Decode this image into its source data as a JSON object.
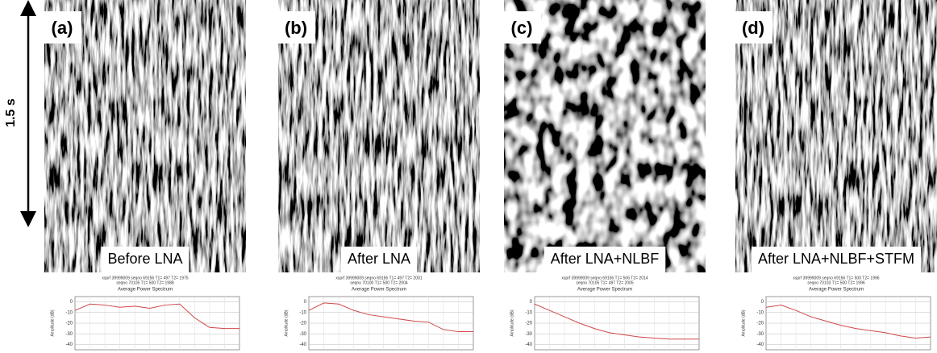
{
  "axis_label": "1.5 s",
  "panels": [
    {
      "label": "(a)",
      "caption": "Before LNA",
      "spectrum": {
        "type": "line",
        "header": [
          "xsprf 39999009 seqno 69156 T1= 497 T2= 1975",
          "seqno 70105 T1= 500 T2= 1988"
        ],
        "title": "Average Power Spectrum",
        "y_label": "Amplitude (dB)",
        "values": [
          -8,
          -2,
          -3,
          -5,
          -4,
          -6,
          -3,
          -2,
          -15,
          -24,
          -25,
          -25
        ],
        "color": "#d04848",
        "ylim": [
          -45,
          5
        ],
        "yticks": [
          0,
          -10,
          -20,
          -30,
          -40
        ],
        "grid": true
      }
    },
    {
      "label": "(b)",
      "caption": "After LNA",
      "spectrum": {
        "type": "line",
        "header": [
          "xsprf 39999009 seqno 69156 T1= 497 T2= 2001",
          "seqno 70100 T1= 500 T2= 2004"
        ],
        "title": "Average Power Spectrum",
        "y_label": "Amplitude (dB)",
        "values": [
          -8,
          -1,
          -2,
          -8,
          -12,
          -14,
          -16,
          -18,
          -19,
          -26,
          -28,
          -28
        ],
        "color": "#d04848",
        "ylim": [
          -45,
          5
        ],
        "yticks": [
          0,
          -10,
          -20,
          -30,
          -40
        ],
        "grid": true
      }
    },
    {
      "label": "(c)",
      "caption": "After LNA+NLBF",
      "spectrum": {
        "type": "line",
        "header": [
          "xsprf 39999009 seqno 69156 T1= 506 T2= 2014",
          "seqno 70105 T1= 497 T2= 2005"
        ],
        "title": "Average Power Spectrum",
        "y_label": "Amplitude (dB)",
        "values": [
          -2,
          -8,
          -14,
          -20,
          -25,
          -29,
          -31,
          -33,
          -34,
          -35,
          -35,
          -35
        ],
        "color": "#d04848",
        "ylim": [
          -45,
          5
        ],
        "yticks": [
          0,
          -10,
          -20,
          -30,
          -40
        ],
        "grid": true
      }
    },
    {
      "label": "(d)",
      "caption": "After LNA+NLBF+STFM",
      "spectrum": {
        "type": "line",
        "header": [
          "xsprf 39999009 seqno 69156 T1= 500 T2= 1996",
          "seqno 70103 T1= 500 T2= 1996"
        ],
        "title": "Average Power Spectrum",
        "y_label": "Amplitude (dB)",
        "values": [
          -5,
          -3,
          -8,
          -14,
          -18,
          -22,
          -25,
          -27,
          -29,
          -32,
          -34,
          -33
        ],
        "color": "#d04848",
        "ylim": [
          -45,
          5
        ],
        "yticks": [
          0,
          -10,
          -20,
          -30,
          -40
        ],
        "grid": true
      }
    }
  ]
}
